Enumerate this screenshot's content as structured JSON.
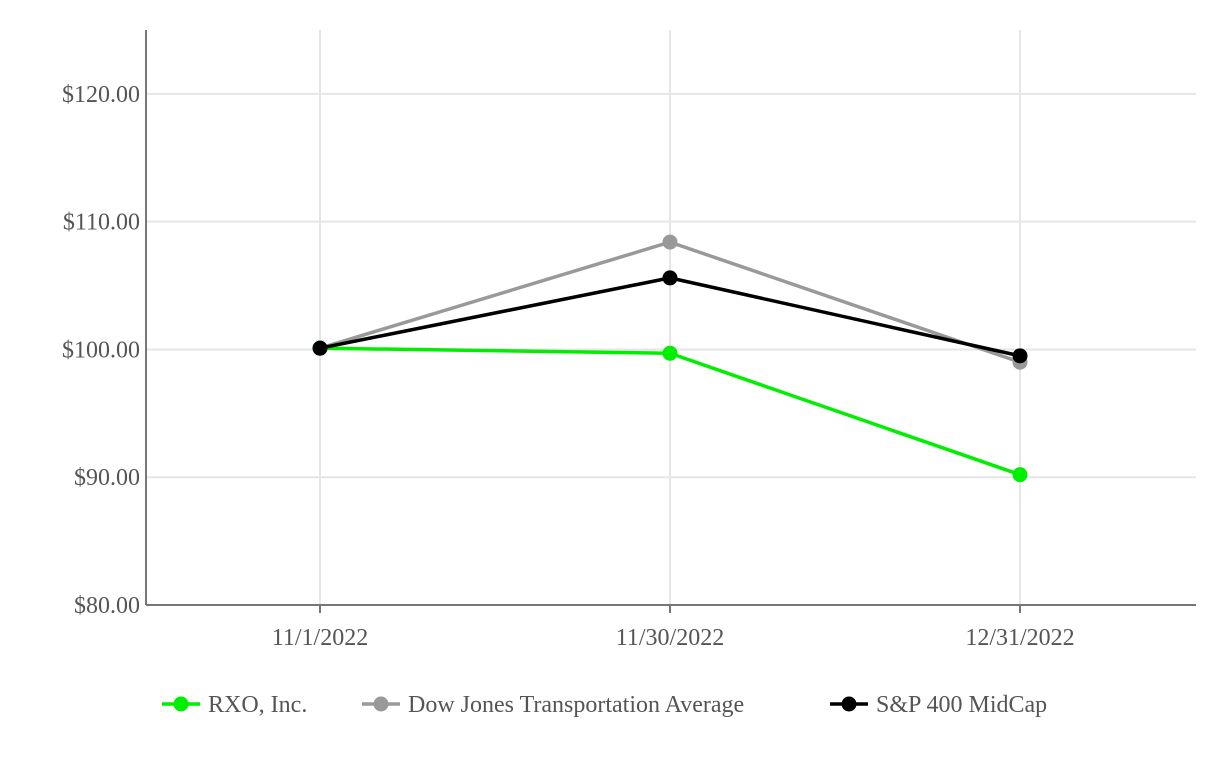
{
  "chart_data": {
    "type": "line",
    "title": "",
    "xlabel": "",
    "ylabel": "",
    "categories": [
      "11/1/2022",
      "11/30/2022",
      "12/31/2022"
    ],
    "ylim": [
      80,
      125
    ],
    "yticks": [
      80,
      90,
      100,
      110,
      120
    ],
    "ytick_labels": [
      "$80.00",
      "$90.00",
      "$100.00",
      "$110.00",
      "$120.00"
    ],
    "grid": true,
    "legend_position": "bottom",
    "series": [
      {
        "name": "RXO, Inc.",
        "color": "#00ee00",
        "values": [
          100.1,
          99.7,
          90.2
        ]
      },
      {
        "name": "Dow Jones Transportation Average",
        "color": "#999999",
        "values": [
          100.1,
          108.4,
          99.0
        ]
      },
      {
        "name": "S&P 400 MidCap",
        "color": "#000000",
        "values": [
          100.1,
          105.6,
          99.5
        ]
      }
    ]
  }
}
